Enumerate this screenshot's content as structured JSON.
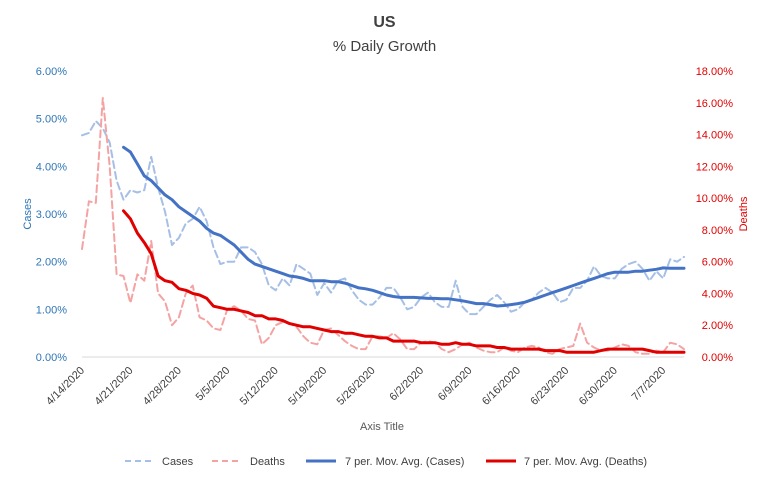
{
  "chart_data": {
    "type": "line",
    "title": "US",
    "subtitle": "% Daily Growth",
    "xlabel": "Axis Title",
    "ylabel_left": "Cases",
    "ylabel_right": "Deaths",
    "ylim_left": [
      0,
      0.06
    ],
    "ylim_right": [
      0,
      0.18
    ],
    "yticks_left": [
      "0.00%",
      "1.00%",
      "2.00%",
      "3.00%",
      "4.00%",
      "5.00%",
      "6.00%"
    ],
    "yticks_right": [
      "0.00%",
      "2.00%",
      "4.00%",
      "6.00%",
      "8.00%",
      "10.00%",
      "12.00%",
      "14.00%",
      "16.00%",
      "18.00%"
    ],
    "x_start": "2020-04-14",
    "x_end": "2020-07-10",
    "xticks": [
      "4/14/2020",
      "4/21/2020",
      "4/28/2020",
      "5/5/2020",
      "5/12/2020",
      "5/19/2020",
      "5/26/2020",
      "6/2/2020",
      "6/9/2020",
      "6/16/2020",
      "6/23/2020",
      "6/30/2020",
      "7/7/2020"
    ],
    "grid": false,
    "legend_position": "bottom",
    "series": [
      {
        "name": "Cases",
        "axis": "left",
        "color": "#a6bfe6",
        "style": "dashed",
        "x": [
          "2020-04-14",
          "2020-04-15",
          "2020-04-16",
          "2020-04-17",
          "2020-04-18",
          "2020-04-19",
          "2020-04-20",
          "2020-04-21",
          "2020-04-22",
          "2020-04-23",
          "2020-04-24",
          "2020-04-25",
          "2020-04-26",
          "2020-04-27",
          "2020-04-28",
          "2020-04-29",
          "2020-04-30",
          "2020-05-01",
          "2020-05-02",
          "2020-05-03",
          "2020-05-04",
          "2020-05-05",
          "2020-05-06",
          "2020-05-07",
          "2020-05-08",
          "2020-05-09",
          "2020-05-10",
          "2020-05-11",
          "2020-05-12",
          "2020-05-13",
          "2020-05-14",
          "2020-05-15",
          "2020-05-16",
          "2020-05-17",
          "2020-05-18",
          "2020-05-19",
          "2020-05-20",
          "2020-05-21",
          "2020-05-22",
          "2020-05-23",
          "2020-05-24",
          "2020-05-25",
          "2020-05-26",
          "2020-05-27",
          "2020-05-28",
          "2020-05-29",
          "2020-05-30",
          "2020-05-31",
          "2020-06-01",
          "2020-06-02",
          "2020-06-03",
          "2020-06-04",
          "2020-06-05",
          "2020-06-06",
          "2020-06-07",
          "2020-06-08",
          "2020-06-09",
          "2020-06-10",
          "2020-06-11",
          "2020-06-12",
          "2020-06-13",
          "2020-06-14",
          "2020-06-15",
          "2020-06-16",
          "2020-06-17",
          "2020-06-18",
          "2020-06-19",
          "2020-06-20",
          "2020-06-21",
          "2020-06-22",
          "2020-06-23",
          "2020-06-24",
          "2020-06-25",
          "2020-06-26",
          "2020-06-27",
          "2020-06-28",
          "2020-06-29",
          "2020-06-30",
          "2020-07-01",
          "2020-07-02",
          "2020-07-03",
          "2020-07-04",
          "2020-07-05",
          "2020-07-06",
          "2020-07-07",
          "2020-07-08",
          "2020-07-09",
          "2020-07-10"
        ],
        "values": [
          0.0465,
          0.047,
          0.0495,
          0.048,
          0.045,
          0.037,
          0.033,
          0.035,
          0.0345,
          0.035,
          0.042,
          0.0355,
          0.0305,
          0.0235,
          0.025,
          0.028,
          0.029,
          0.0315,
          0.0285,
          0.023,
          0.0195,
          0.02,
          0.02,
          0.023,
          0.023,
          0.022,
          0.0195,
          0.015,
          0.014,
          0.0165,
          0.015,
          0.0195,
          0.0185,
          0.0175,
          0.013,
          0.0155,
          0.0135,
          0.016,
          0.0165,
          0.014,
          0.012,
          0.011,
          0.011,
          0.0125,
          0.0145,
          0.0145,
          0.0125,
          0.01,
          0.0105,
          0.0125,
          0.0135,
          0.0115,
          0.0105,
          0.0105,
          0.016,
          0.0105,
          0.009,
          0.009,
          0.0105,
          0.012,
          0.013,
          0.0115,
          0.0095,
          0.01,
          0.0115,
          0.012,
          0.0135,
          0.0145,
          0.0135,
          0.0115,
          0.012,
          0.0145,
          0.0145,
          0.016,
          0.019,
          0.017,
          0.0165,
          0.0165,
          0.0185,
          0.0195,
          0.02,
          0.0185,
          0.016,
          0.018,
          0.0165,
          0.0205,
          0.02,
          0.021
        ]
      },
      {
        "name": "Deaths",
        "axis": "right",
        "color": "#f4a3a3",
        "style": "dashed",
        "x": [
          "2020-04-14",
          "2020-04-15",
          "2020-04-16",
          "2020-04-17",
          "2020-04-18",
          "2020-04-19",
          "2020-04-20",
          "2020-04-21",
          "2020-04-22",
          "2020-04-23",
          "2020-04-24",
          "2020-04-25",
          "2020-04-26",
          "2020-04-27",
          "2020-04-28",
          "2020-04-29",
          "2020-04-30",
          "2020-05-01",
          "2020-05-02",
          "2020-05-03",
          "2020-05-04",
          "2020-05-05",
          "2020-05-06",
          "2020-05-07",
          "2020-05-08",
          "2020-05-09",
          "2020-05-10",
          "2020-05-11",
          "2020-05-12",
          "2020-05-13",
          "2020-05-14",
          "2020-05-15",
          "2020-05-16",
          "2020-05-17",
          "2020-05-18",
          "2020-05-19",
          "2020-05-20",
          "2020-05-21",
          "2020-05-22",
          "2020-05-23",
          "2020-05-24",
          "2020-05-25",
          "2020-05-26",
          "2020-05-27",
          "2020-05-28",
          "2020-05-29",
          "2020-05-30",
          "2020-05-31",
          "2020-06-01",
          "2020-06-02",
          "2020-06-03",
          "2020-06-04",
          "2020-06-05",
          "2020-06-06",
          "2020-06-07",
          "2020-06-08",
          "2020-06-09",
          "2020-06-10",
          "2020-06-11",
          "2020-06-12",
          "2020-06-13",
          "2020-06-14",
          "2020-06-15",
          "2020-06-16",
          "2020-06-17",
          "2020-06-18",
          "2020-06-19",
          "2020-06-20",
          "2020-06-21",
          "2020-06-22",
          "2020-06-23",
          "2020-06-24",
          "2020-06-25",
          "2020-06-26",
          "2020-06-27",
          "2020-06-28",
          "2020-06-29",
          "2020-06-30",
          "2020-07-01",
          "2020-07-02",
          "2020-07-03",
          "2020-07-04",
          "2020-07-05",
          "2020-07-06",
          "2020-07-07",
          "2020-07-08",
          "2020-07-09",
          "2020-07-10"
        ],
        "values": [
          0.068,
          0.098,
          0.097,
          0.163,
          0.12,
          0.052,
          0.051,
          0.034,
          0.052,
          0.048,
          0.073,
          0.04,
          0.035,
          0.02,
          0.025,
          0.04,
          0.045,
          0.025,
          0.023,
          0.018,
          0.017,
          0.03,
          0.032,
          0.029,
          0.024,
          0.023,
          0.008,
          0.012,
          0.02,
          0.022,
          0.021,
          0.019,
          0.013,
          0.009,
          0.008,
          0.017,
          0.018,
          0.014,
          0.01,
          0.007,
          0.005,
          0.005,
          0.013,
          0.013,
          0.012,
          0.015,
          0.011,
          0.005,
          0.005,
          0.009,
          0.01,
          0.009,
          0.005,
          0.003,
          0.005,
          0.008,
          0.009,
          0.006,
          0.004,
          0.003,
          0.003,
          0.006,
          0.004,
          0.003,
          0.006,
          0.007,
          0.006,
          0.003,
          0.002,
          0.005,
          0.006,
          0.007,
          0.021,
          0.009,
          0.006,
          0.004,
          0.004,
          0.006,
          0.008,
          0.007,
          0.003,
          0.002,
          0.002,
          0.004,
          0.003,
          0.009,
          0.008,
          0.005
        ]
      },
      {
        "name": "7 per. Mov. Avg. (Cases)",
        "axis": "left",
        "color": "#4472c4",
        "style": "solid",
        "x": [
          "2020-04-20",
          "2020-04-21",
          "2020-04-22",
          "2020-04-23",
          "2020-04-24",
          "2020-04-25",
          "2020-04-26",
          "2020-04-27",
          "2020-04-28",
          "2020-04-29",
          "2020-04-30",
          "2020-05-01",
          "2020-05-02",
          "2020-05-03",
          "2020-05-04",
          "2020-05-05",
          "2020-05-06",
          "2020-05-07",
          "2020-05-08",
          "2020-05-09",
          "2020-05-10",
          "2020-05-11",
          "2020-05-12",
          "2020-05-13",
          "2020-05-14",
          "2020-05-15",
          "2020-05-16",
          "2020-05-17",
          "2020-05-18",
          "2020-05-19",
          "2020-05-20",
          "2020-05-21",
          "2020-05-22",
          "2020-05-23",
          "2020-05-24",
          "2020-05-25",
          "2020-05-26",
          "2020-05-27",
          "2020-05-28",
          "2020-05-29",
          "2020-05-30",
          "2020-05-31",
          "2020-06-01",
          "2020-06-02",
          "2020-06-03",
          "2020-06-04",
          "2020-06-05",
          "2020-06-06",
          "2020-06-07",
          "2020-06-08",
          "2020-06-09",
          "2020-06-10",
          "2020-06-11",
          "2020-06-12",
          "2020-06-13",
          "2020-06-14",
          "2020-06-15",
          "2020-06-16",
          "2020-06-17",
          "2020-06-18",
          "2020-06-19",
          "2020-06-20",
          "2020-06-21",
          "2020-06-22",
          "2020-06-23",
          "2020-06-24",
          "2020-06-25",
          "2020-06-26",
          "2020-06-27",
          "2020-06-28",
          "2020-06-29",
          "2020-06-30",
          "2020-07-01",
          "2020-07-02",
          "2020-07-03",
          "2020-07-04",
          "2020-07-05",
          "2020-07-06",
          "2020-07-07",
          "2020-07-08",
          "2020-07-09",
          "2020-07-10"
        ],
        "values": [
          0.044,
          0.043,
          0.0405,
          0.038,
          0.037,
          0.0355,
          0.034,
          0.033,
          0.0315,
          0.0305,
          0.0295,
          0.0285,
          0.027,
          0.026,
          0.0255,
          0.0245,
          0.0235,
          0.022,
          0.0205,
          0.0195,
          0.019,
          0.0185,
          0.018,
          0.0175,
          0.017,
          0.0168,
          0.0165,
          0.016,
          0.016,
          0.016,
          0.0158,
          0.0158,
          0.0155,
          0.015,
          0.0145,
          0.0143,
          0.014,
          0.0135,
          0.013,
          0.0127,
          0.0125,
          0.0125,
          0.0125,
          0.0124,
          0.0123,
          0.0123,
          0.0122,
          0.0122,
          0.012,
          0.0118,
          0.0115,
          0.0112,
          0.0112,
          0.011,
          0.0107,
          0.0108,
          0.011,
          0.0112,
          0.0115,
          0.012,
          0.0125,
          0.013,
          0.0135,
          0.014,
          0.0145,
          0.015,
          0.0155,
          0.016,
          0.0165,
          0.017,
          0.0175,
          0.0178,
          0.0178,
          0.0178,
          0.018,
          0.018,
          0.0182,
          0.0184,
          0.0187,
          0.0186,
          0.0186,
          0.0186
        ]
      },
      {
        "name": "7 per. Mov. Avg. (Deaths)",
        "axis": "right",
        "color": "#e00000",
        "style": "solid",
        "x": [
          "2020-04-20",
          "2020-04-21",
          "2020-04-22",
          "2020-04-23",
          "2020-04-24",
          "2020-04-25",
          "2020-04-26",
          "2020-04-27",
          "2020-04-28",
          "2020-04-29",
          "2020-04-30",
          "2020-05-01",
          "2020-05-02",
          "2020-05-03",
          "2020-05-04",
          "2020-05-05",
          "2020-05-06",
          "2020-05-07",
          "2020-05-08",
          "2020-05-09",
          "2020-05-10",
          "2020-05-11",
          "2020-05-12",
          "2020-05-13",
          "2020-05-14",
          "2020-05-15",
          "2020-05-16",
          "2020-05-17",
          "2020-05-18",
          "2020-05-19",
          "2020-05-20",
          "2020-05-21",
          "2020-05-22",
          "2020-05-23",
          "2020-05-24",
          "2020-05-25",
          "2020-05-26",
          "2020-05-27",
          "2020-05-28",
          "2020-05-29",
          "2020-05-30",
          "2020-05-31",
          "2020-06-01",
          "2020-06-02",
          "2020-06-03",
          "2020-06-04",
          "2020-06-05",
          "2020-06-06",
          "2020-06-07",
          "2020-06-08",
          "2020-06-09",
          "2020-06-10",
          "2020-06-11",
          "2020-06-12",
          "2020-06-13",
          "2020-06-14",
          "2020-06-15",
          "2020-06-16",
          "2020-06-17",
          "2020-06-18",
          "2020-06-19",
          "2020-06-20",
          "2020-06-21",
          "2020-06-22",
          "2020-06-23",
          "2020-06-24",
          "2020-06-25",
          "2020-06-26",
          "2020-06-27",
          "2020-06-28",
          "2020-06-29",
          "2020-06-30",
          "2020-07-01",
          "2020-07-02",
          "2020-07-03",
          "2020-07-04",
          "2020-07-05",
          "2020-07-06",
          "2020-07-07",
          "2020-07-08",
          "2020-07-09",
          "2020-07-10"
        ],
        "values": [
          0.092,
          0.087,
          0.078,
          0.072,
          0.065,
          0.051,
          0.048,
          0.047,
          0.043,
          0.042,
          0.04,
          0.039,
          0.037,
          0.032,
          0.031,
          0.03,
          0.03,
          0.029,
          0.028,
          0.026,
          0.026,
          0.024,
          0.024,
          0.023,
          0.021,
          0.02,
          0.019,
          0.019,
          0.018,
          0.017,
          0.016,
          0.016,
          0.015,
          0.015,
          0.014,
          0.013,
          0.013,
          0.012,
          0.012,
          0.01,
          0.01,
          0.01,
          0.01,
          0.009,
          0.009,
          0.009,
          0.008,
          0.008,
          0.009,
          0.008,
          0.008,
          0.007,
          0.007,
          0.007,
          0.006,
          0.006,
          0.005,
          0.005,
          0.005,
          0.005,
          0.005,
          0.004,
          0.004,
          0.004,
          0.003,
          0.003,
          0.003,
          0.003,
          0.003,
          0.004,
          0.005,
          0.005,
          0.005,
          0.005,
          0.005,
          0.005,
          0.004,
          0.003,
          0.003,
          0.003,
          0.003,
          0.003
        ]
      }
    ]
  }
}
